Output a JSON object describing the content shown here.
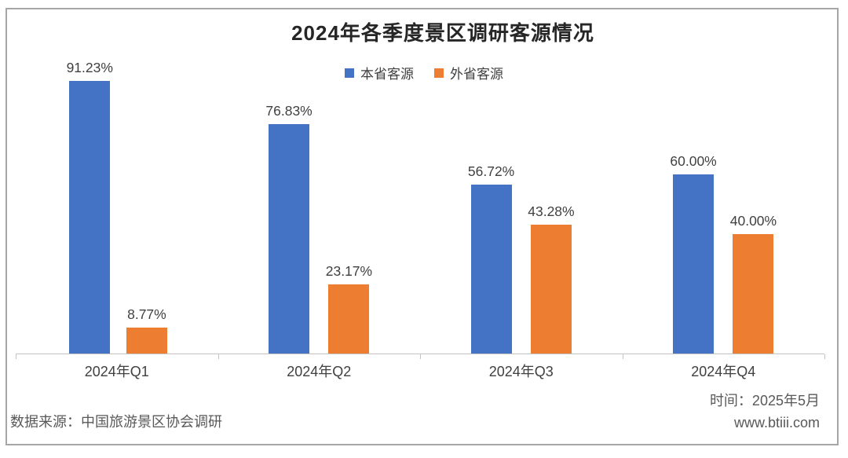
{
  "title": "2024年各季度景区调研客源情况",
  "chart_data": {
    "type": "bar",
    "title": "2024年各季度景区调研客源情况",
    "categories": [
      "2024年Q1",
      "2024年Q2",
      "2024年Q3",
      "2024年Q4"
    ],
    "series": [
      {
        "name": "本省客源",
        "color": "#4472C4",
        "values": [
          91.23,
          76.83,
          56.72,
          60.0
        ],
        "labels": [
          "91.23%",
          "76.83%",
          "56.72%",
          "60.00%"
        ]
      },
      {
        "name": "外省客源",
        "color": "#ED7D31",
        "values": [
          8.77,
          23.17,
          43.28,
          40.0
        ],
        "labels": [
          "8.77%",
          "23.17%",
          "43.28%",
          "40.00%"
        ]
      }
    ],
    "xlabel": "",
    "ylabel": "",
    "ylim": [
      0,
      100
    ],
    "grid": false,
    "legend_position": "top-center",
    "value_labels_shown": true,
    "y_axis_shown": false
  },
  "footer": {
    "source": "数据来源：中国旅游景区协会调研",
    "time": "时间：2025年5月",
    "website": "www.btiii.com"
  },
  "colors": {
    "series_blue": "#4472C4",
    "series_orange": "#ED7D31",
    "label_text": "#404040",
    "footer_text": "#595959",
    "frame_border": "#a6a6a6",
    "axis_line": "#c3c3c3"
  }
}
